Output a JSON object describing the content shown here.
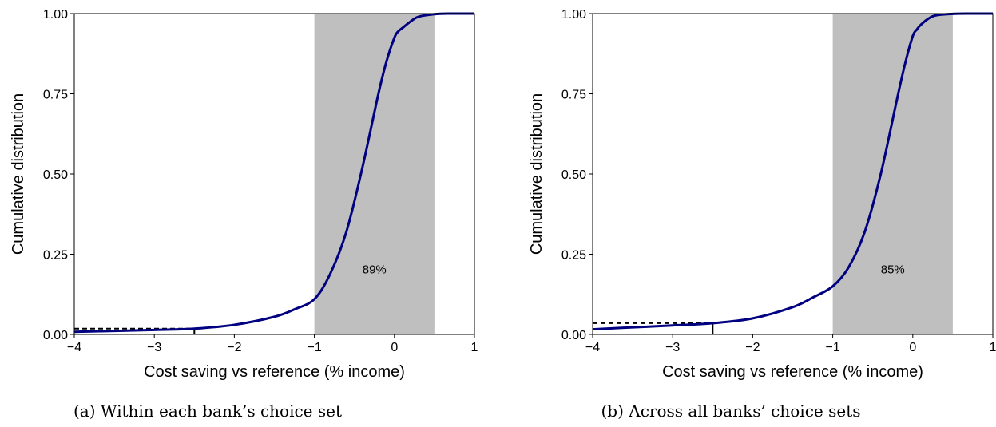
{
  "chart_data": [
    {
      "type": "line",
      "caption": "(a) Within each bank’s choice set",
      "xlabel": "Cost saving vs reference (% income)",
      "ylabel": "Cumulative distribution",
      "xlim": [
        -4,
        1
      ],
      "ylim": [
        0,
        1
      ],
      "xticks": [
        -4,
        -3,
        -2,
        -1,
        0,
        1
      ],
      "xtick_labels": [
        "−4",
        "−3",
        "−2",
        "−1",
        "0",
        "1"
      ],
      "yticks": [
        0,
        0.25,
        0.5,
        0.75,
        1
      ],
      "ytick_labels": [
        "0.00",
        "0.25",
        "0.50",
        "0.75",
        "1.00"
      ],
      "shaded_band": {
        "x_from": -1,
        "x_to": 0.5,
        "label": "89%",
        "label_x": -0.25,
        "label_y": 0.19
      },
      "reference_marker": {
        "x": -2.5,
        "y": 0.018
      },
      "series": [
        {
          "x": [
            -4,
            -3.5,
            -3,
            -2.5,
            -2,
            -1.5,
            -1.25,
            -1,
            -0.8,
            -0.6,
            -0.4,
            -0.2,
            -0.1,
            0,
            0.05,
            0.1,
            0.2,
            0.3,
            0.5,
            0.7,
            1
          ],
          "y": [
            0.008,
            0.011,
            0.014,
            0.018,
            0.03,
            0.055,
            0.078,
            0.11,
            0.19,
            0.32,
            0.52,
            0.75,
            0.85,
            0.925,
            0.945,
            0.955,
            0.975,
            0.99,
            0.998,
            1.0,
            1.0
          ]
        }
      ]
    },
    {
      "type": "line",
      "caption": "(b) Across all banks’ choice sets",
      "xlabel": "Cost saving vs reference (% income)",
      "ylabel": "Cumulative distribution",
      "xlim": [
        -4,
        1
      ],
      "ylim": [
        0,
        1
      ],
      "xticks": [
        -4,
        -3,
        -2,
        -1,
        0,
        1
      ],
      "xtick_labels": [
        "−4",
        "−3",
        "−2",
        "−1",
        "0",
        "1"
      ],
      "yticks": [
        0,
        0.25,
        0.5,
        0.75,
        1
      ],
      "ytick_labels": [
        "0.00",
        "0.25",
        "0.50",
        "0.75",
        "1.00"
      ],
      "shaded_band": {
        "x_from": -1,
        "x_to": 0.5,
        "label": "85%",
        "label_x": -0.25,
        "label_y": 0.19
      },
      "reference_marker": {
        "x": -2.5,
        "y": 0.035
      },
      "series": [
        {
          "x": [
            -4,
            -3.5,
            -3,
            -2.5,
            -2,
            -1.5,
            -1.25,
            -1,
            -0.8,
            -0.6,
            -0.4,
            -0.2,
            -0.1,
            0,
            0.05,
            0.1,
            0.2,
            0.3,
            0.5,
            0.7,
            1
          ],
          "y": [
            0.016,
            0.022,
            0.028,
            0.035,
            0.05,
            0.085,
            0.115,
            0.15,
            0.21,
            0.32,
            0.5,
            0.73,
            0.84,
            0.93,
            0.95,
            0.965,
            0.985,
            0.995,
            0.999,
            1.0,
            1.0
          ]
        }
      ]
    }
  ]
}
